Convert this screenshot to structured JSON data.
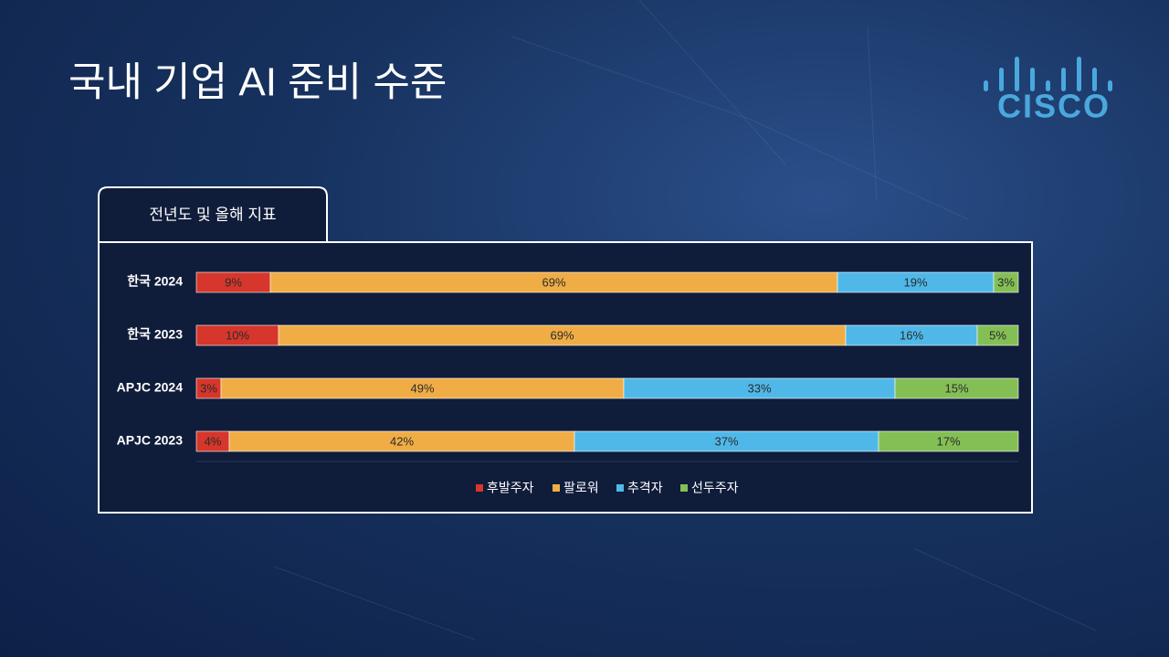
{
  "slide_title": "국내 기업 AI 준비 수준",
  "logo": "cisco",
  "chart_data": {
    "type": "stacked-bar-horizontal",
    "title": "전년도 및 올해 지표",
    "categories": [
      "한국 2024",
      "한국 2023",
      "APJC 2024",
      "APJC 2023"
    ],
    "xlim": [
      0,
      100
    ],
    "legend": "bottom",
    "series": [
      {
        "name": "후발주자",
        "color": "#d6362b",
        "values": [
          9,
          10,
          3,
          4
        ],
        "value_labels": [
          "9%",
          "10%",
          "3%",
          "4%"
        ]
      },
      {
        "name": "팔로워",
        "color": "#f0ad45",
        "values": [
          69,
          69,
          49,
          42
        ],
        "value_labels": [
          "69%",
          "69%",
          "49%",
          "42%"
        ]
      },
      {
        "name": "추격자",
        "color": "#4fb8e9",
        "values": [
          19,
          16,
          33,
          37
        ],
        "value_labels": [
          "19%",
          "16%",
          "33%",
          "37%"
        ]
      },
      {
        "name": "선두주자",
        "color": "#84bf55",
        "values": [
          3,
          5,
          15,
          17
        ],
        "value_labels": [
          "3%",
          "5%",
          "15%",
          "17%"
        ]
      }
    ]
  }
}
